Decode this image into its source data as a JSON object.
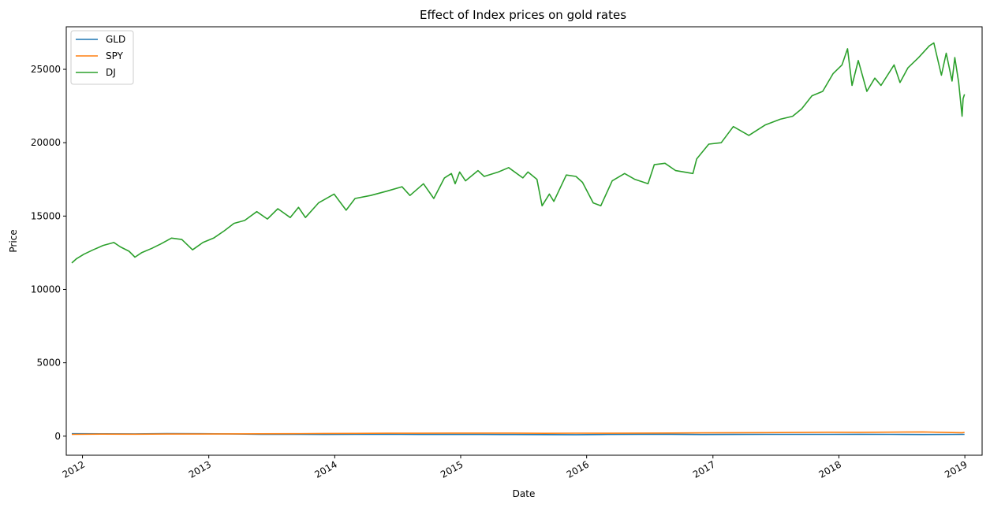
{
  "chart_data": {
    "type": "line",
    "title": "Effect of Index prices on gold rates",
    "xlabel": "Date",
    "ylabel": "Price",
    "xlim": [
      "2011-11-15",
      "2019-02-20"
    ],
    "ylim": [
      -1300,
      27900
    ],
    "x_ticks": [
      "2012",
      "2013",
      "2014",
      "2015",
      "2016",
      "2017",
      "2018",
      "2019"
    ],
    "y_ticks": [
      0,
      5000,
      10000,
      15000,
      20000,
      25000
    ],
    "grid": false,
    "legend_position": "top-left",
    "series": [
      {
        "name": "GLD",
        "color": "#1f77b4",
        "points": [
          [
            "2011-12-01",
            165
          ],
          [
            "2012-03-01",
            162
          ],
          [
            "2012-06-01",
            155
          ],
          [
            "2012-09-01",
            170
          ],
          [
            "2012-12-01",
            165
          ],
          [
            "2013-03-01",
            155
          ],
          [
            "2013-06-01",
            125
          ],
          [
            "2013-09-01",
            130
          ],
          [
            "2013-12-01",
            118
          ],
          [
            "2014-03-01",
            125
          ],
          [
            "2014-06-01",
            127
          ],
          [
            "2014-09-01",
            118
          ],
          [
            "2014-12-01",
            115
          ],
          [
            "2015-03-01",
            115
          ],
          [
            "2015-06-01",
            113
          ],
          [
            "2015-09-01",
            108
          ],
          [
            "2015-12-01",
            102
          ],
          [
            "2016-03-01",
            118
          ],
          [
            "2016-06-01",
            126
          ],
          [
            "2016-09-01",
            126
          ],
          [
            "2016-12-01",
            110
          ],
          [
            "2017-03-01",
            118
          ],
          [
            "2017-06-01",
            120
          ],
          [
            "2017-09-01",
            124
          ],
          [
            "2017-12-01",
            123
          ],
          [
            "2018-03-01",
            126
          ],
          [
            "2018-06-01",
            120
          ],
          [
            "2018-09-01",
            114
          ],
          [
            "2018-12-31",
            121
          ]
        ]
      },
      {
        "name": "SPY",
        "color": "#ff7f0e",
        "points": [
          [
            "2011-12-01",
            125
          ],
          [
            "2012-03-01",
            140
          ],
          [
            "2012-06-01",
            135
          ],
          [
            "2012-09-01",
            145
          ],
          [
            "2012-12-01",
            142
          ],
          [
            "2013-03-01",
            156
          ],
          [
            "2013-06-01",
            160
          ],
          [
            "2013-09-01",
            168
          ],
          [
            "2013-12-01",
            180
          ],
          [
            "2014-03-01",
            187
          ],
          [
            "2014-06-01",
            195
          ],
          [
            "2014-09-01",
            198
          ],
          [
            "2014-12-01",
            207
          ],
          [
            "2015-03-01",
            208
          ],
          [
            "2015-06-01",
            210
          ],
          [
            "2015-09-01",
            193
          ],
          [
            "2015-12-01",
            205
          ],
          [
            "2016-03-01",
            200
          ],
          [
            "2016-06-01",
            209
          ],
          [
            "2016-09-01",
            216
          ],
          [
            "2016-12-01",
            225
          ],
          [
            "2017-03-01",
            236
          ],
          [
            "2017-06-01",
            243
          ],
          [
            "2017-09-01",
            250
          ],
          [
            "2017-12-01",
            266
          ],
          [
            "2018-03-01",
            264
          ],
          [
            "2018-06-01",
            272
          ],
          [
            "2018-09-01",
            290
          ],
          [
            "2018-12-24",
            235
          ],
          [
            "2018-12-31",
            250
          ]
        ]
      },
      {
        "name": "DJ",
        "color": "#2ca02c",
        "points": [
          [
            "2011-12-01",
            11800
          ],
          [
            "2011-12-15",
            12100
          ],
          [
            "2012-01-05",
            12400
          ],
          [
            "2012-02-01",
            12700
          ],
          [
            "2012-03-01",
            13000
          ],
          [
            "2012-04-01",
            13200
          ],
          [
            "2012-04-20",
            12900
          ],
          [
            "2012-05-15",
            12600
          ],
          [
            "2012-06-01",
            12200
          ],
          [
            "2012-06-20",
            12500
          ],
          [
            "2012-07-20",
            12800
          ],
          [
            "2012-08-15",
            13100
          ],
          [
            "2012-09-15",
            13500
          ],
          [
            "2012-10-15",
            13400
          ],
          [
            "2012-11-15",
            12700
          ],
          [
            "2012-12-15",
            13200
          ],
          [
            "2013-01-15",
            13500
          ],
          [
            "2013-02-15",
            14000
          ],
          [
            "2013-03-15",
            14500
          ],
          [
            "2013-04-15",
            14700
          ],
          [
            "2013-05-20",
            15300
          ],
          [
            "2013-06-20",
            14800
          ],
          [
            "2013-07-20",
            15500
          ],
          [
            "2013-08-25",
            14900
          ],
          [
            "2013-09-18",
            15600
          ],
          [
            "2013-10-08",
            14900
          ],
          [
            "2013-11-15",
            15900
          ],
          [
            "2013-12-30",
            16500
          ],
          [
            "2014-02-03",
            15400
          ],
          [
            "2014-03-01",
            16200
          ],
          [
            "2014-04-15",
            16400
          ],
          [
            "2014-06-01",
            16700
          ],
          [
            "2014-07-15",
            17000
          ],
          [
            "2014-08-07",
            16400
          ],
          [
            "2014-09-15",
            17200
          ],
          [
            "2014-10-15",
            16200
          ],
          [
            "2014-11-15",
            17600
          ],
          [
            "2014-12-05",
            17900
          ],
          [
            "2014-12-16",
            17200
          ],
          [
            "2014-12-29",
            18000
          ],
          [
            "2015-01-15",
            17400
          ],
          [
            "2015-02-20",
            18100
          ],
          [
            "2015-03-10",
            17700
          ],
          [
            "2015-04-20",
            18000
          ],
          [
            "2015-05-20",
            18300
          ],
          [
            "2015-06-30",
            17600
          ],
          [
            "2015-07-15",
            18000
          ],
          [
            "2015-08-10",
            17500
          ],
          [
            "2015-08-25",
            15700
          ],
          [
            "2015-09-15",
            16500
          ],
          [
            "2015-09-28",
            16000
          ],
          [
            "2015-11-03",
            17800
          ],
          [
            "2015-12-01",
            17700
          ],
          [
            "2015-12-20",
            17300
          ],
          [
            "2016-01-20",
            15900
          ],
          [
            "2016-02-11",
            15700
          ],
          [
            "2016-03-15",
            17400
          ],
          [
            "2016-04-20",
            17900
          ],
          [
            "2016-05-20",
            17500
          ],
          [
            "2016-06-27",
            17200
          ],
          [
            "2016-07-15",
            18500
          ],
          [
            "2016-08-15",
            18600
          ],
          [
            "2016-09-15",
            18100
          ],
          [
            "2016-11-04",
            17900
          ],
          [
            "2016-11-15",
            18900
          ],
          [
            "2016-12-20",
            19900
          ],
          [
            "2017-01-25",
            20000
          ],
          [
            "2017-03-01",
            21100
          ],
          [
            "2017-04-15",
            20500
          ],
          [
            "2017-06-01",
            21200
          ],
          [
            "2017-07-15",
            21600
          ],
          [
            "2017-08-20",
            21800
          ],
          [
            "2017-09-15",
            22300
          ],
          [
            "2017-10-15",
            23200
          ],
          [
            "2017-11-15",
            23500
          ],
          [
            "2017-12-15",
            24700
          ],
          [
            "2018-01-10",
            25300
          ],
          [
            "2018-01-26",
            26400
          ],
          [
            "2018-02-08",
            23900
          ],
          [
            "2018-02-26",
            25600
          ],
          [
            "2018-03-23",
            23500
          ],
          [
            "2018-04-15",
            24400
          ],
          [
            "2018-05-03",
            23900
          ],
          [
            "2018-06-10",
            25300
          ],
          [
            "2018-06-27",
            24100
          ],
          [
            "2018-07-20",
            25100
          ],
          [
            "2018-08-20",
            25800
          ],
          [
            "2018-09-20",
            26600
          ],
          [
            "2018-10-03",
            26800
          ],
          [
            "2018-10-25",
            24600
          ],
          [
            "2018-11-08",
            26100
          ],
          [
            "2018-11-25",
            24200
          ],
          [
            "2018-12-03",
            25800
          ],
          [
            "2018-12-14",
            24100
          ],
          [
            "2018-12-24",
            21800
          ],
          [
            "2018-12-27",
            23000
          ],
          [
            "2018-12-31",
            23300
          ]
        ]
      }
    ]
  }
}
